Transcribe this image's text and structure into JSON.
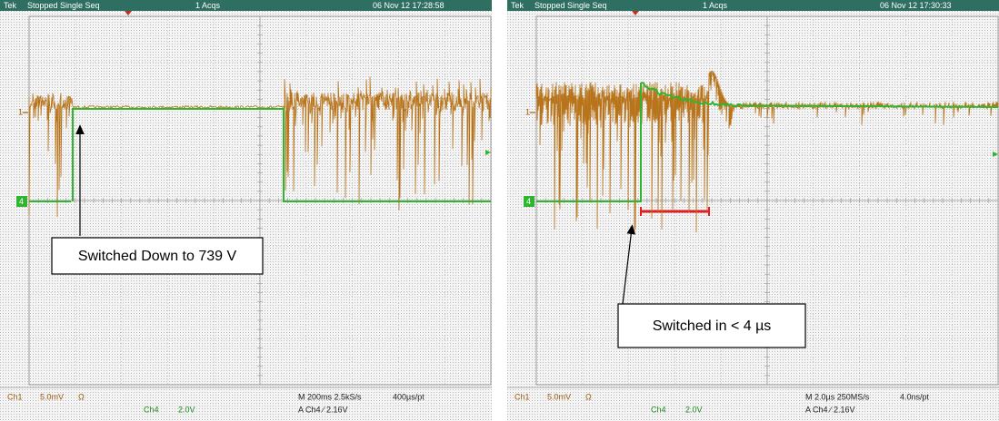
{
  "screens": [
    {
      "status": {
        "brand": "Tek",
        "state": "Stopped Single Seq",
        "acqs": "1 Acqs",
        "datetime": "06 Nov 12 17:28:58"
      },
      "markers": {
        "ch1": "1",
        "ch4": "4"
      },
      "readout": {
        "ch1": "Ch1",
        "ch1_scale": "5.0mV",
        "ch1_coupling": "Ω",
        "ch4": "Ch4",
        "ch4_scale": "2.0V",
        "timebase": "M 200ms 2.5kS/s",
        "resolution": "400µs/pt",
        "trigger": "A Ch4 ∕ 2.16V"
      },
      "annotation": "Switched Down to 739 V"
    },
    {
      "status": {
        "brand": "Tek",
        "state": "Stopped Single Seq",
        "acqs": "1 Acqs",
        "datetime": "06 Nov 12 17:30:33"
      },
      "markers": {
        "ch1": "1",
        "ch4": "4"
      },
      "readout": {
        "ch1": "Ch1",
        "ch1_scale": "5.0mV",
        "ch1_coupling": "Ω",
        "ch4": "Ch4",
        "ch4_scale": "2.0V",
        "timebase": "M 2.0µs 250MS/s",
        "resolution": "4.0ns/pt",
        "trigger": "A Ch4 ∕ 2.16V"
      },
      "annotation": "Switched in < 4 µs"
    }
  ]
}
